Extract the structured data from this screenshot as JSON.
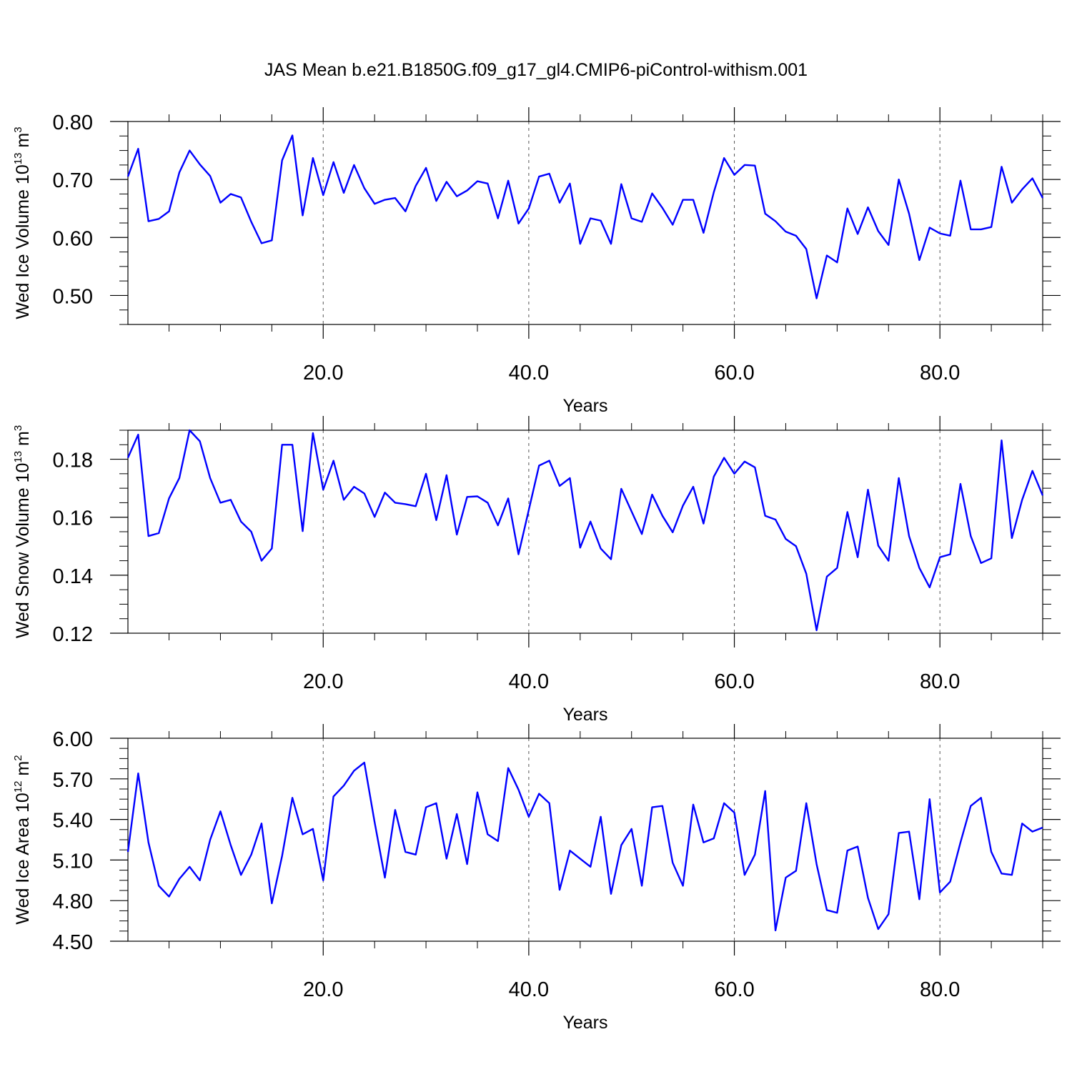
{
  "figure_title": "JAS Mean b.e21.B1850G.f09_g17_gl4.CMIP6-piControl-withism.001",
  "chart_data": [
    {
      "type": "line",
      "title": "",
      "xlabel": "Years",
      "ylabel": {
        "main": "Wed Ice Volume 10",
        "exp": "13",
        "unit": " m",
        "unit_exp": "3"
      },
      "xlim": [
        1,
        90
      ],
      "ylim": [
        0.45,
        0.8
      ],
      "xticks": [
        20,
        40,
        60,
        80
      ],
      "xtick_labels": [
        "20.0",
        "40.0",
        "60.0",
        "80.0"
      ],
      "yticks": [
        0.5,
        0.6,
        0.7,
        0.8
      ],
      "ytick_labels": [
        "0.50",
        "0.60",
        "0.70",
        "0.80"
      ],
      "grid": "vertical dashed at major x ticks",
      "series_color": "#0000ff",
      "x_start": 1,
      "values": [
        0.705,
        0.753,
        0.628,
        0.632,
        0.645,
        0.712,
        0.75,
        0.726,
        0.706,
        0.66,
        0.675,
        0.669,
        0.627,
        0.59,
        0.595,
        0.733,
        0.776,
        0.638,
        0.737,
        0.673,
        0.73,
        0.677,
        0.725,
        0.685,
        0.658,
        0.665,
        0.668,
        0.645,
        0.689,
        0.72,
        0.663,
        0.696,
        0.671,
        0.681,
        0.697,
        0.693,
        0.633,
        0.698,
        0.624,
        0.65,
        0.705,
        0.71,
        0.66,
        0.693,
        0.589,
        0.633,
        0.629,
        0.589,
        0.692,
        0.633,
        0.627,
        0.676,
        0.651,
        0.622,
        0.665,
        0.665,
        0.608,
        0.678,
        0.737,
        0.708,
        0.725,
        0.724,
        0.641,
        0.628,
        0.61,
        0.603,
        0.58,
        0.495,
        0.569,
        0.557,
        0.65,
        0.606,
        0.652,
        0.611,
        0.587,
        0.7,
        0.641,
        0.561,
        0.617,
        0.607,
        0.603,
        0.698,
        0.614,
        0.614,
        0.618,
        0.722,
        0.66,
        0.683,
        0.702,
        0.668
      ]
    },
    {
      "type": "line",
      "title": "",
      "xlabel": "Years",
      "ylabel": {
        "main": "Wed Snow Volume 10",
        "exp": "13",
        "unit": " m",
        "unit_exp": "3"
      },
      "xlim": [
        1,
        90
      ],
      "ylim": [
        0.12,
        0.19
      ],
      "xticks": [
        20,
        40,
        60,
        80
      ],
      "xtick_labels": [
        "20.0",
        "40.0",
        "60.0",
        "80.0"
      ],
      "yticks": [
        0.12,
        0.14,
        0.16,
        0.18
      ],
      "ytick_labels": [
        "0.12",
        "0.14",
        "0.16",
        "0.18"
      ],
      "grid": "vertical dashed at major x ticks",
      "series_color": "#0000ff",
      "x_start": 1,
      "values": [
        0.1805,
        0.1885,
        0.1535,
        0.1545,
        0.1665,
        0.1735,
        0.19,
        0.1862,
        0.1735,
        0.165,
        0.166,
        0.1585,
        0.155,
        0.145,
        0.1492,
        0.185,
        0.185,
        0.1552,
        0.189,
        0.1695,
        0.1795,
        0.166,
        0.1705,
        0.1682,
        0.1601,
        0.1685,
        0.165,
        0.1645,
        0.1638,
        0.175,
        0.159,
        0.1745,
        0.154,
        0.167,
        0.1672,
        0.165,
        0.1572,
        0.1665,
        0.1472,
        0.1625,
        0.1778,
        0.1795,
        0.1708,
        0.1735,
        0.1495,
        0.1585,
        0.1492,
        0.1455,
        0.1698,
        0.162,
        0.1542,
        0.1678,
        0.1605,
        0.1548,
        0.164,
        0.1705,
        0.1578,
        0.174,
        0.1805,
        0.175,
        0.1792,
        0.1772,
        0.1605,
        0.1592,
        0.1525,
        0.15,
        0.1405,
        0.121,
        0.1395,
        0.1425,
        0.1618,
        0.1462,
        0.1695,
        0.1502,
        0.145,
        0.1735,
        0.1535,
        0.1425,
        0.1358,
        0.1462,
        0.1472,
        0.1715,
        0.1535,
        0.1442,
        0.1458,
        0.1865,
        0.1528,
        0.166,
        0.176,
        0.1675
      ]
    },
    {
      "type": "line",
      "title": "",
      "xlabel": "Years",
      "ylabel": {
        "main": "Wed Ice Area 10",
        "exp": "12",
        "unit": " m",
        "unit_exp": "2"
      },
      "xlim": [
        1,
        90
      ],
      "ylim": [
        4.5,
        6.0
      ],
      "xticks": [
        20,
        40,
        60,
        80
      ],
      "xtick_labels": [
        "20.0",
        "40.0",
        "60.0",
        "80.0"
      ],
      "yticks": [
        4.5,
        4.8,
        5.1,
        5.4,
        5.7,
        6.0
      ],
      "ytick_labels": [
        "4.50",
        "4.80",
        "5.10",
        "5.40",
        "5.70",
        "6.00"
      ],
      "grid": "vertical dashed at major x ticks",
      "series_color": "#0000ff",
      "x_start": 1,
      "values": [
        5.16,
        5.74,
        5.23,
        4.91,
        4.83,
        4.96,
        5.05,
        4.95,
        5.25,
        5.46,
        5.21,
        4.99,
        5.14,
        5.37,
        4.78,
        5.13,
        5.56,
        5.29,
        5.33,
        4.95,
        5.57,
        5.65,
        5.76,
        5.82,
        5.38,
        4.97,
        5.47,
        5.16,
        5.14,
        5.49,
        5.52,
        5.11,
        5.44,
        5.07,
        5.6,
        5.29,
        5.24,
        5.78,
        5.62,
        5.42,
        5.59,
        5.52,
        4.88,
        5.17,
        5.11,
        5.05,
        5.42,
        4.85,
        5.21,
        5.33,
        4.91,
        5.49,
        5.5,
        5.08,
        4.91,
        5.51,
        5.23,
        5.26,
        5.52,
        5.45,
        4.99,
        5.14,
        5.61,
        4.58,
        4.97,
        5.02,
        5.52,
        5.07,
        4.73,
        4.71,
        5.17,
        5.2,
        4.82,
        4.59,
        4.7,
        5.3,
        5.31,
        4.81,
        5.55,
        4.86,
        4.94,
        5.23,
        5.5,
        5.56,
        5.16,
        5.0,
        4.99,
        5.37,
        5.31,
        5.34
      ]
    }
  ]
}
